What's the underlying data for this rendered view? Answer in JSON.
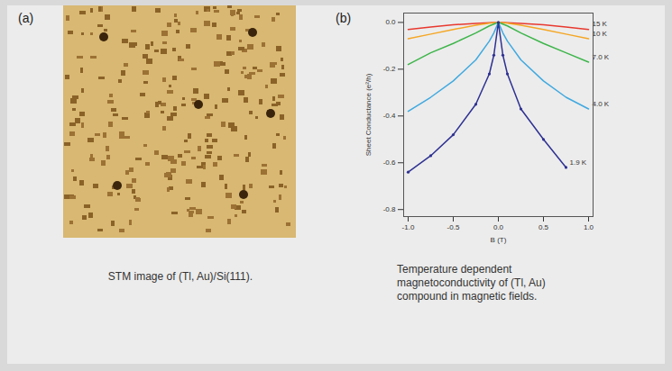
{
  "figure": {
    "panels": [
      {
        "label": "(a)",
        "caption": "STM image of (Tl, Au)/Si(111)."
      },
      {
        "label": "(b)",
        "caption": "Temperature dependent magnetoconductivity of (Tl, Au) compound in magnetic fields."
      }
    ]
  },
  "chart_data": {
    "type": "line",
    "x_label": "B (T)",
    "y_label": "Sheet Conductance (e²/h)",
    "x": [
      -1.0,
      -0.75,
      -0.5,
      -0.25,
      -0.1,
      -0.05,
      0.0,
      0.05,
      0.1,
      0.25,
      0.5,
      0.75,
      1.0
    ],
    "series": [
      {
        "name": "15 K",
        "color": "#e8392f",
        "values": [
          -0.03,
          -0.02,
          -0.01,
          -0.004,
          -0.001,
          0.0,
          0.0,
          0.0,
          -0.001,
          -0.004,
          -0.01,
          -0.02,
          -0.03
        ]
      },
      {
        "name": "10 K",
        "color": "#f5a623",
        "values": [
          -0.07,
          -0.05,
          -0.03,
          -0.012,
          -0.003,
          -0.001,
          0.0,
          -0.001,
          -0.003,
          -0.012,
          -0.03,
          -0.05,
          -0.07
        ]
      },
      {
        "name": "7.0 K",
        "color": "#3db54a",
        "values": [
          -0.18,
          -0.13,
          -0.09,
          -0.045,
          -0.015,
          -0.007,
          0.0,
          -0.007,
          -0.015,
          -0.045,
          -0.09,
          -0.13,
          -0.17
        ]
      },
      {
        "name": "4.0 K",
        "color": "#3fa9e0",
        "values": [
          -0.38,
          -0.32,
          -0.25,
          -0.16,
          -0.08,
          -0.045,
          0.0,
          -0.045,
          -0.08,
          -0.16,
          -0.25,
          -0.32,
          -0.37
        ]
      },
      {
        "name": "1.9 K",
        "color": "#2e3192",
        "marker": "circle",
        "values": [
          -0.64,
          -0.57,
          -0.48,
          -0.35,
          -0.22,
          -0.14,
          0.0,
          -0.14,
          -0.22,
          -0.37,
          -0.5,
          -0.62,
          null
        ]
      }
    ],
    "xlim": [
      -1.05,
      1.05
    ],
    "ylim": [
      -0.83,
      0.04
    ],
    "xticks": [
      {
        "value": -1.0,
        "label": "-1.0"
      },
      -0.5,
      {
        "value": 0.0,
        "label": "0.0"
      },
      0.5,
      {
        "value": 1.0,
        "label": "1.0"
      }
    ],
    "yticks": [
      {
        "value": 0.0,
        "label": "0.0"
      },
      -0.2,
      -0.4,
      -0.6,
      -0.8
    ],
    "grid": false
  }
}
